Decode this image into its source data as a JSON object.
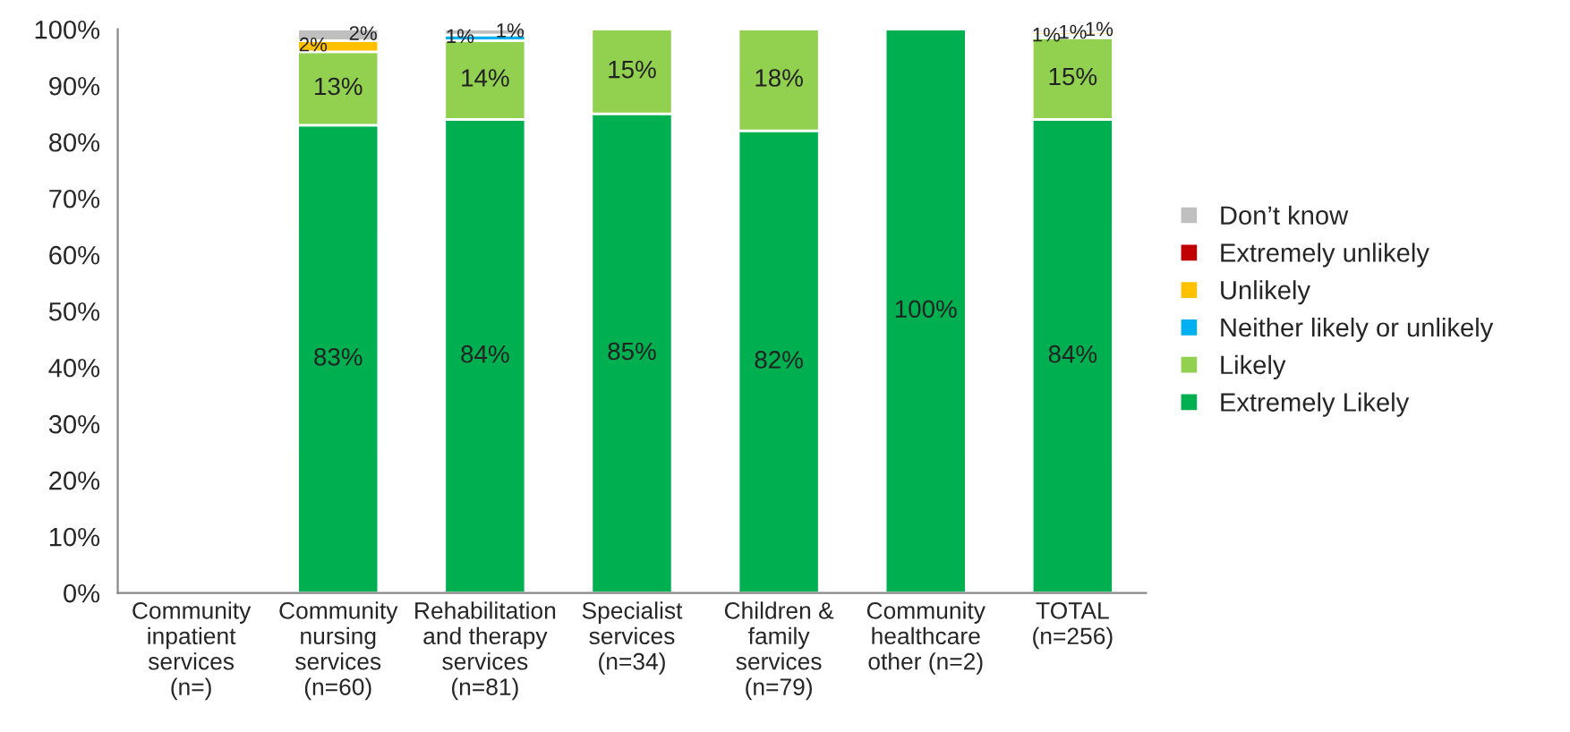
{
  "chart_data": {
    "type": "bar",
    "stacked": true,
    "categories": [
      "Community inpatient services (n=)",
      "Community nursing services (n=60)",
      "Rehabilitation and therapy services (n=81)",
      "Specialist services (n=34)",
      "Children & family services (n=79)",
      "Community healthcare other (n=2)",
      "TOTAL (n=256)"
    ],
    "series": [
      {
        "name": "Extremely Likely",
        "color": "#00b050",
        "values": [
          null,
          83,
          84,
          85,
          82,
          100,
          84
        ],
        "value_labels": [
          null,
          "83%",
          "84%",
          "85%",
          "82%",
          "100%",
          "84%"
        ]
      },
      {
        "name": "Likely",
        "color": "#92d050",
        "values": [
          null,
          13,
          14,
          15,
          18,
          null,
          14.5
        ],
        "value_labels": [
          null,
          "13%",
          "14%",
          "15%",
          "18%",
          null,
          "15%"
        ]
      },
      {
        "name": "Neither likely or unlikely",
        "color": "#00b0f0",
        "values": [
          null,
          null,
          1,
          null,
          null,
          null,
          0.5
        ],
        "value_labels": [
          null,
          null,
          "1%",
          null,
          null,
          null,
          "1%"
        ]
      },
      {
        "name": "Unlikely",
        "color": "#ffc000",
        "values": [
          null,
          2,
          null,
          null,
          null,
          null,
          0.5
        ],
        "value_labels": [
          null,
          "2%",
          null,
          null,
          null,
          null,
          "1%"
        ]
      },
      {
        "name": "Extremely unlikely",
        "color": "#c00000",
        "values": [
          null,
          null,
          null,
          null,
          null,
          null,
          null
        ]
      },
      {
        "name": "Don’t know",
        "color": "#bfbfbf",
        "values": [
          null,
          2,
          1,
          null,
          null,
          null,
          0.5
        ],
        "value_labels": [
          null,
          "2%",
          "1%",
          null,
          null,
          null,
          "1%"
        ]
      }
    ],
    "ylim": [
      0,
      100
    ],
    "yticks": [
      {
        "value": 0,
        "label": "0%"
      },
      {
        "value": 10,
        "label": "10%"
      },
      {
        "value": 20,
        "label": "20%"
      },
      {
        "value": 30,
        "label": "30%"
      },
      {
        "value": 40,
        "label": "40%"
      },
      {
        "value": 50,
        "label": "50%"
      },
      {
        "value": 60,
        "label": "60%"
      },
      {
        "value": 70,
        "label": "70%"
      },
      {
        "value": 80,
        "label": "80%"
      },
      {
        "value": 90,
        "label": "90%"
      },
      {
        "value": 100,
        "label": "100%"
      }
    ],
    "legend": "right",
    "grid": false
  }
}
